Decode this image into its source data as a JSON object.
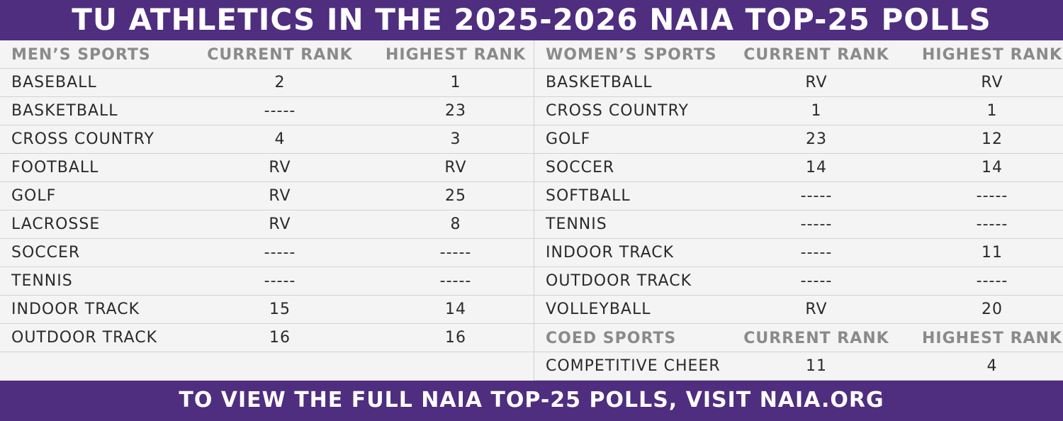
{
  "title": "TU ATHLETICS IN THE 2025-2026 NAIA TOP-25 POLLS",
  "footer": "TO VIEW THE FULL NAIA TOP-25 POLLS, VISIT NAIA.ORG",
  "colors": {
    "banner": "#4f2d7f",
    "background": "#f4f4f4",
    "header_text": "#8a8a8a"
  },
  "chart_data": {
    "type": "table",
    "tables": [
      {
        "headers": [
          "MEN’S SPORTS",
          "CURRENT RANK",
          "HIGHEST RANK"
        ],
        "rows": [
          [
            "BASEBALL",
            "2",
            "1"
          ],
          [
            "BASKETBALL",
            "-----",
            "23"
          ],
          [
            "CROSS COUNTRY",
            "4",
            "3"
          ],
          [
            "FOOTBALL",
            "RV",
            "RV"
          ],
          [
            "GOLF",
            "RV",
            "25"
          ],
          [
            "LACROSSE",
            "RV",
            "8"
          ],
          [
            "SOCCER",
            "-----",
            "-----"
          ],
          [
            "TENNIS",
            "-----",
            "-----"
          ],
          [
            "INDOOR TRACK",
            "15",
            "14"
          ],
          [
            "OUTDOOR TRACK",
            "16",
            "16"
          ]
        ]
      },
      {
        "headers": [
          "WOMEN’S SPORTS",
          "CURRENT RANK",
          "HIGHEST RANK"
        ],
        "rows": [
          [
            "BASKETBALL",
            "RV",
            "RV"
          ],
          [
            "CROSS COUNTRY",
            "1",
            "1"
          ],
          [
            "GOLF",
            "23",
            "12"
          ],
          [
            "SOCCER",
            "14",
            "14"
          ],
          [
            "SOFTBALL",
            "-----",
            "-----"
          ],
          [
            "TENNIS",
            "-----",
            "-----"
          ],
          [
            "INDOOR TRACK",
            "-----",
            "11"
          ],
          [
            "OUTDOOR TRACK",
            "-----",
            "-----"
          ],
          [
            "VOLLEYBALL",
            "RV",
            "20"
          ]
        ]
      },
      {
        "headers": [
          "COED SPORTS",
          "CURRENT RANK",
          "HIGHEST RANK"
        ],
        "rows": [
          [
            "COMPETITIVE CHEER",
            "11",
            "4"
          ]
        ]
      }
    ]
  }
}
